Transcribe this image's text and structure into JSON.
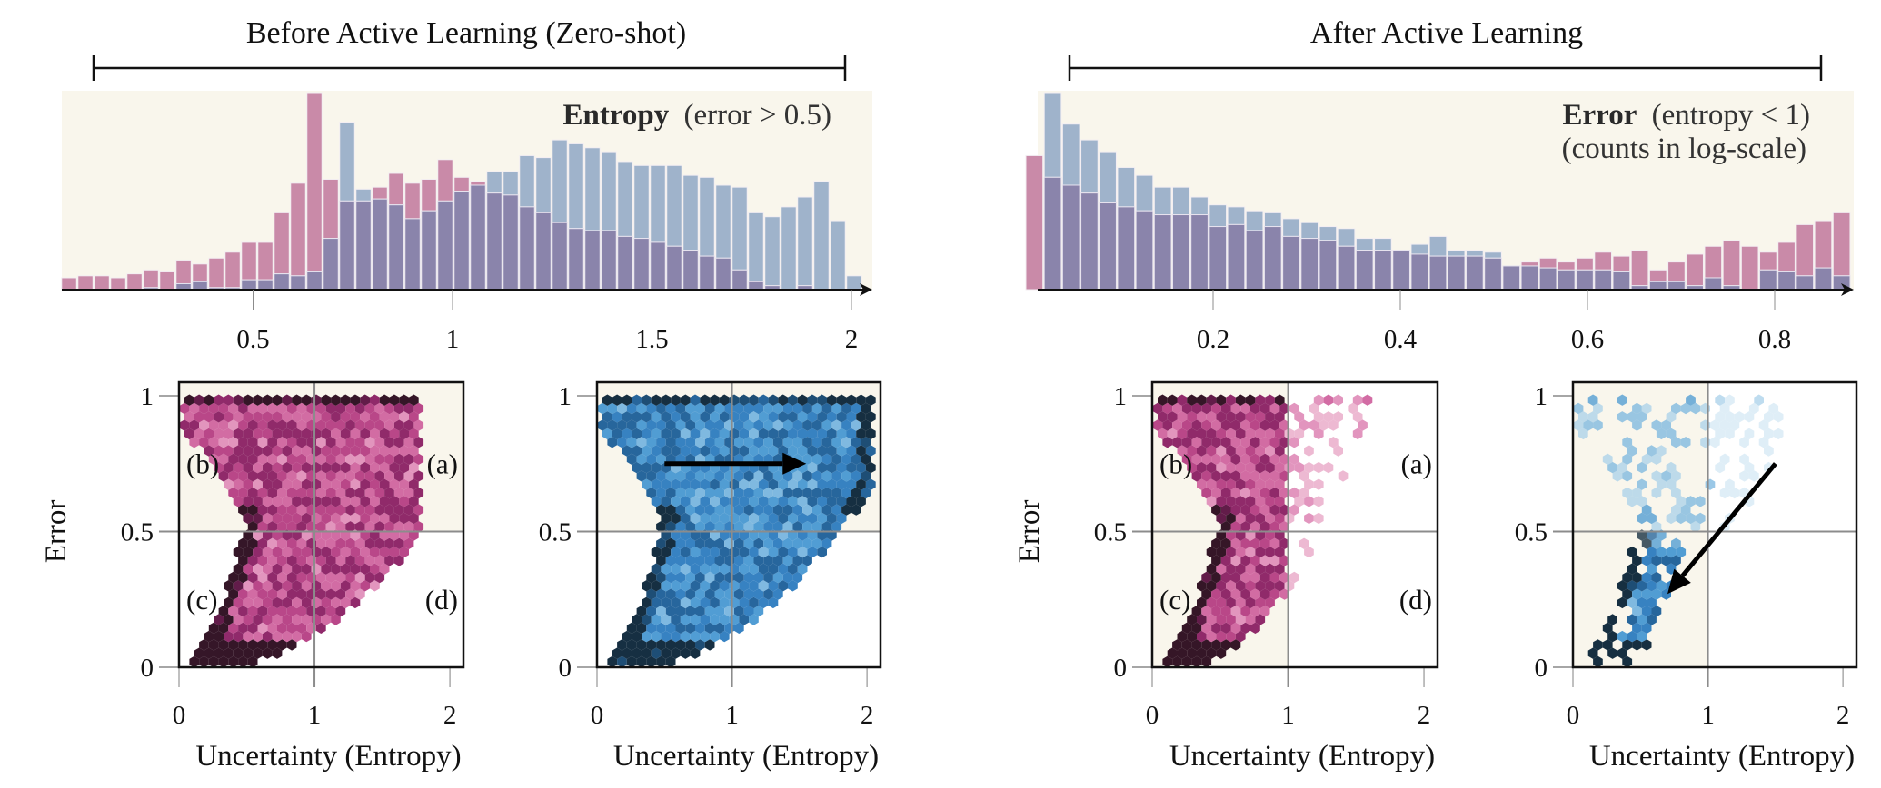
{
  "colors": {
    "panel_bg": "#f9f6ec",
    "pink_bar": "#c98aa8",
    "blue_bar": "#9fb3cb",
    "overlap_bar": "#8a84ab",
    "grid": "#8c8c8c",
    "axis": "#111111"
  },
  "chart_data": [
    {
      "type": "bar",
      "subtype": "overlaid-histogram",
      "section_title": "Before Active Learning (Zero-shot)",
      "annotation_bold": "Entropy",
      "annotation_rest": "(error > 0.5)",
      "xlabel": "",
      "ylabel": "",
      "xlim": [
        0.0,
        2.05
      ],
      "x_ticks": [
        0.5,
        1,
        1.5,
        2
      ],
      "x_tick_labels": [
        "0.5",
        "1",
        "1.5",
        "2"
      ],
      "bin_start": 0.02,
      "bin_width": 0.041,
      "y_units": "relative count (peak = 1)",
      "series": [
        {
          "name": "zero-shot",
          "color": "pink",
          "values": [
            0.06,
            0.07,
            0.07,
            0.06,
            0.08,
            0.1,
            0.09,
            0.15,
            0.13,
            0.16,
            0.19,
            0.24,
            0.24,
            0.39,
            0.54,
            1.0,
            0.56,
            0.45,
            0.45,
            0.52,
            0.59,
            0.54,
            0.56,
            0.66,
            0.57,
            0.55,
            0.49,
            0.48,
            0.42,
            0.39,
            0.34,
            0.31,
            0.3,
            0.3,
            0.27,
            0.26,
            0.24,
            0.22,
            0.2,
            0.17,
            0.16,
            0.1,
            0.04,
            0.02,
            0.0,
            0.02,
            0.0,
            0.0,
            0.0,
            0.0
          ]
        },
        {
          "name": "after",
          "color": "blue",
          "values": [
            0.0,
            0.0,
            0.0,
            0.0,
            0.0,
            0.01,
            0.0,
            0.03,
            0.04,
            0.01,
            0.01,
            0.05,
            0.05,
            0.08,
            0.07,
            0.09,
            0.26,
            0.85,
            0.51,
            0.46,
            0.43,
            0.36,
            0.4,
            0.45,
            0.5,
            0.53,
            0.6,
            0.6,
            0.68,
            0.67,
            0.76,
            0.74,
            0.72,
            0.7,
            0.65,
            0.63,
            0.63,
            0.63,
            0.58,
            0.57,
            0.53,
            0.52,
            0.39,
            0.37,
            0.42,
            0.47,
            0.55,
            0.35,
            0.07,
            0.01
          ]
        }
      ]
    },
    {
      "type": "bar",
      "subtype": "overlaid-histogram",
      "section_title": "After Active Learning",
      "annotation_bold": "Error",
      "annotation_rest": "(entropy < 1)",
      "annotation_line2": "(counts in log-scale)",
      "xlabel": "",
      "ylabel": "",
      "xlim": [
        0.0,
        0.97
      ],
      "x_ticks": [
        0.2,
        0.4,
        0.6,
        0.8
      ],
      "x_tick_labels": [
        "0.2",
        "0.4",
        "0.6",
        "0.8"
      ],
      "bin_start": 0.0,
      "bin_width": 0.0196,
      "y_units": "relative log-count (peak = 1)",
      "series": [
        {
          "name": "zero-shot",
          "color": "pink",
          "values": [
            0.68,
            0.57,
            0.53,
            0.49,
            0.44,
            0.42,
            0.4,
            0.38,
            0.38,
            0.38,
            0.32,
            0.33,
            0.3,
            0.32,
            0.27,
            0.26,
            0.25,
            0.22,
            0.2,
            0.2,
            0.2,
            0.18,
            0.17,
            0.17,
            0.17,
            0.16,
            0.12,
            0.14,
            0.16,
            0.14,
            0.16,
            0.19,
            0.17,
            0.2,
            0.1,
            0.14,
            0.18,
            0.22,
            0.25,
            0.22,
            0.19,
            0.24,
            0.33,
            0.35,
            0.39,
            0.41,
            0.45,
            0.5,
            0.52,
            0.58
          ]
        },
        {
          "name": "after",
          "color": "blue",
          "values": [
            0.0,
            1.0,
            0.84,
            0.76,
            0.7,
            0.62,
            0.58,
            0.52,
            0.52,
            0.47,
            0.43,
            0.42,
            0.4,
            0.39,
            0.36,
            0.34,
            0.32,
            0.31,
            0.26,
            0.26,
            0.2,
            0.23,
            0.27,
            0.2,
            0.2,
            0.19,
            0.12,
            0.12,
            0.11,
            0.1,
            0.1,
            0.1,
            0.09,
            0.02,
            0.04,
            0.04,
            0.02,
            0.06,
            0.02,
            0.0,
            0.1,
            0.09,
            0.07,
            0.11,
            0.07,
            0.13,
            0.07,
            0.07,
            0.17,
            0.1
          ]
        }
      ]
    },
    {
      "type": "heatmap",
      "subtype": "hexbin",
      "panel": "before-zero-shot",
      "colormap": "pink (RdPu)",
      "xlabel": "Uncertainty (Entropy)",
      "ylabel": "Error",
      "xlim": [
        0,
        2.1
      ],
      "ylim": [
        0,
        1.05
      ],
      "x_ticks": [
        "0",
        "1",
        "2"
      ],
      "y_ticks": [
        "0",
        "0.5",
        "1"
      ],
      "reference_lines": {
        "x": 1,
        "y": 0.5
      },
      "highlighted_region": "error > 0.5",
      "quadrant_labels": {
        "top_left": "(b)",
        "top_right": "(a)",
        "bottom_left": "(c)",
        "bottom_right": "(d)"
      }
    },
    {
      "type": "heatmap",
      "subtype": "hexbin",
      "panel": "before-after",
      "colormap": "blue (Blues)",
      "xlabel": "Uncertainty (Entropy)",
      "ylabel": "",
      "xlim": [
        0,
        2.1
      ],
      "ylim": [
        0,
        1.05
      ],
      "x_ticks": [
        "0",
        "1",
        "2"
      ],
      "y_ticks": [
        "0",
        "0.5",
        "1"
      ],
      "reference_lines": {
        "x": 1,
        "y": 0.5
      },
      "highlighted_region": "error > 0.5",
      "arrow": {
        "from": [
          0.5,
          0.75
        ],
        "to": [
          1.55,
          0.75
        ]
      }
    },
    {
      "type": "heatmap",
      "subtype": "hexbin",
      "panel": "after-zero-shot",
      "colormap": "pink (RdPu)",
      "xlabel": "Uncertainty (Entropy)",
      "ylabel": "Error",
      "xlim": [
        0,
        2.1
      ],
      "ylim": [
        0,
        1.05
      ],
      "x_ticks": [
        "0",
        "1",
        "2"
      ],
      "y_ticks": [
        "0",
        "0.5",
        "1"
      ],
      "reference_lines": {
        "x": 1,
        "y": 0.5
      },
      "highlighted_region": "entropy < 1",
      "quadrant_labels": {
        "top_left": "(b)",
        "top_right": "(a)",
        "bottom_left": "(c)",
        "bottom_right": "(d)"
      }
    },
    {
      "type": "heatmap",
      "subtype": "hexbin",
      "panel": "after-after",
      "colormap": "blue (Blues)",
      "xlabel": "Uncertainty (Entropy)",
      "ylabel": "",
      "xlim": [
        0,
        2.1
      ],
      "ylim": [
        0,
        1.05
      ],
      "x_ticks": [
        "0",
        "1",
        "2"
      ],
      "y_ticks": [
        "0",
        "0.5",
        "1"
      ],
      "reference_lines": {
        "x": 1,
        "y": 0.5
      },
      "highlighted_region": "entropy < 1",
      "arrow": {
        "from": [
          1.5,
          0.75
        ],
        "to": [
          0.7,
          0.27
        ]
      }
    }
  ]
}
